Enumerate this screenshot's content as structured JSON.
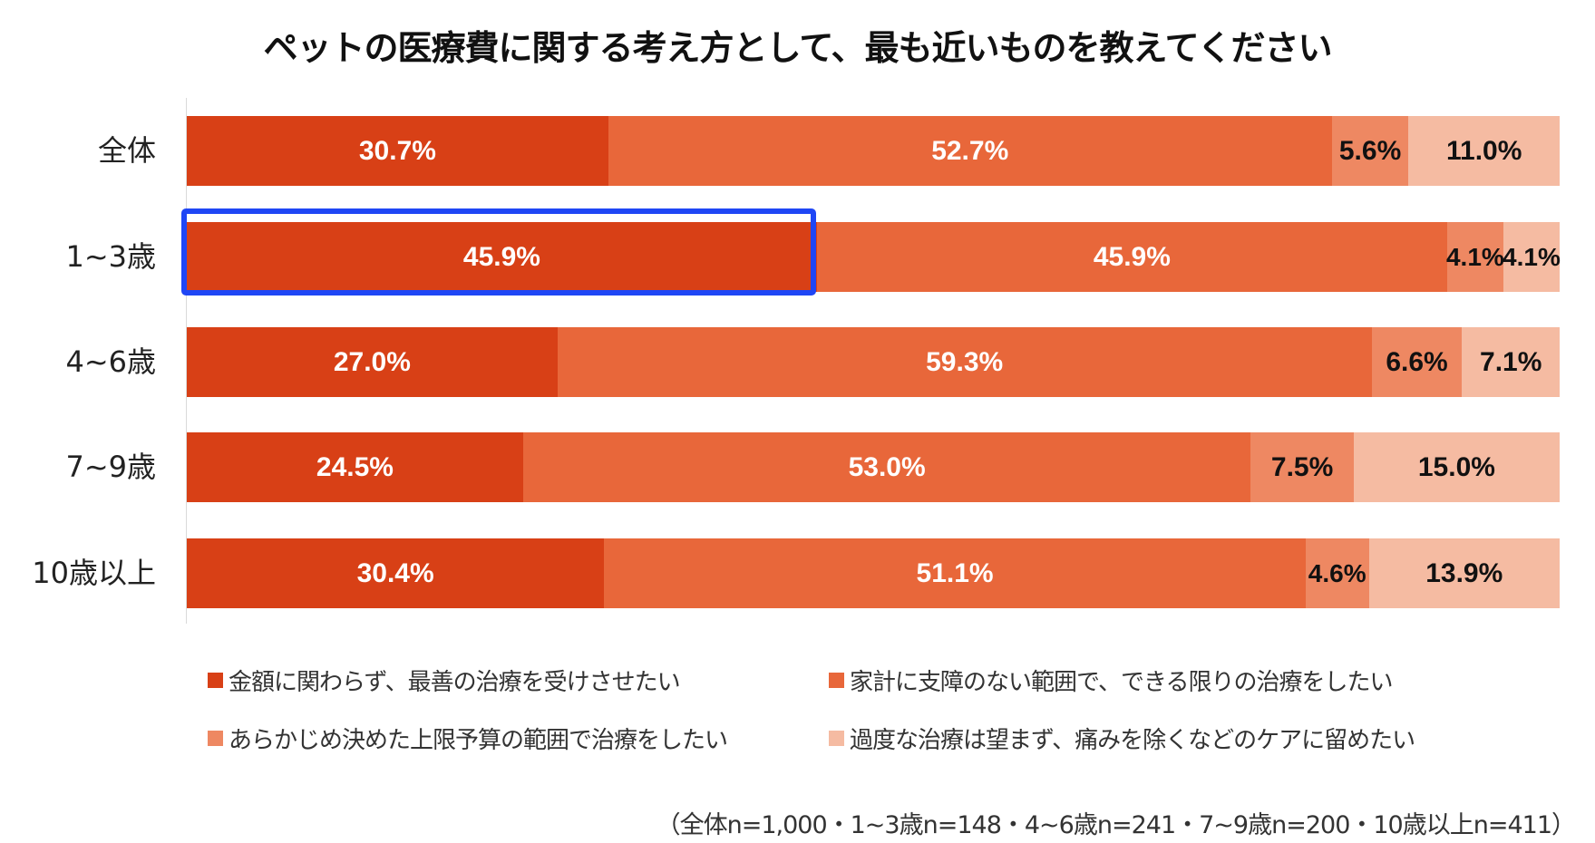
{
  "chart_data": {
    "type": "bar",
    "orientation": "horizontal",
    "stacked": "100%",
    "title": "ペットの医療費に関する考え方として、最も近いものを教えてください",
    "categories": [
      "全体",
      "1~3歳",
      "4~6歳",
      "7~9歳",
      "10歳以上"
    ],
    "series": [
      {
        "name": "金額に関わらず、最善の治療を受けさせたい",
        "color": "#D84016",
        "label_color": "#ffffff",
        "values": [
          30.7,
          45.9,
          27.0,
          24.5,
          30.4
        ],
        "labels": [
          "30.7%",
          "45.9%",
          "27.0%",
          "24.5%",
          "30.4%"
        ]
      },
      {
        "name": "家計に支障のない範囲で、できる限りの治療をしたい",
        "color": "#E8673A",
        "label_color": "#ffffff",
        "values": [
          52.7,
          45.9,
          59.3,
          53.0,
          51.1
        ],
        "labels": [
          "52.7%",
          "45.9%",
          "59.3%",
          "53.0%",
          "51.1%"
        ]
      },
      {
        "name": "あらかじめ決めた上限予算の範囲で治療をしたい",
        "color": "#EE8862",
        "label_color": "#111111",
        "values": [
          5.6,
          4.1,
          6.6,
          7.5,
          4.6
        ],
        "labels": [
          "5.6%",
          "4.1%",
          "6.6%",
          "7.5%",
          "4.6%"
        ]
      },
      {
        "name": "過度な治療は望まず、痛みを除くなどのケアに留めたい",
        "color": "#F5BBA2",
        "label_color": "#111111",
        "values": [
          11.0,
          4.1,
          7.1,
          15.0,
          13.9
        ],
        "labels": [
          "11.0%",
          "4.1%",
          "7.1%",
          "15.0%",
          "13.9%"
        ]
      }
    ],
    "xlim": [
      0,
      100
    ],
    "grid": false,
    "legend_position": "bottom",
    "highlight": {
      "category": "1~3歳",
      "series_index": 0,
      "color": "#1F46F5"
    },
    "footnote": "（全体n=1,000・1~3歳n=148・4~6歳n=241・7~9歳n=200・10歳以上n=411）"
  }
}
